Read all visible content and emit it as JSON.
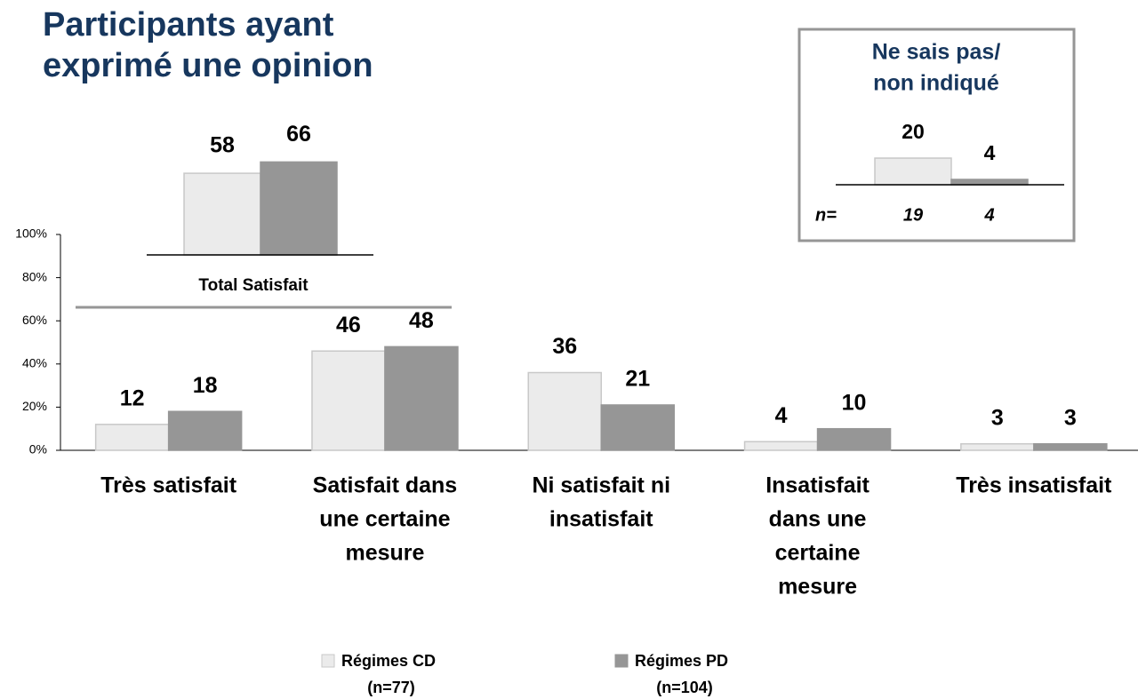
{
  "chart_data": [
    {
      "type": "bar",
      "title": [
        "Participants ayant",
        "exprimé une opinion"
      ],
      "categories": [
        [
          "Très satisfait"
        ],
        [
          "Satisfait dans",
          "une certaine",
          "mesure"
        ],
        [
          "Ni satisfait ni",
          "insatisfait"
        ],
        [
          "Insatisfait",
          "dans une",
          "certaine",
          "mesure"
        ],
        [
          "Très insatisfait"
        ]
      ],
      "series": [
        {
          "name": [
            "Régimes CD",
            "(n=77)"
          ],
          "color": "#ebebeb",
          "values": [
            12,
            46,
            36,
            4,
            3
          ]
        },
        {
          "name": [
            "Régimes PD",
            "(n=104)"
          ],
          "color": "#969696",
          "values": [
            18,
            48,
            21,
            10,
            3
          ]
        }
      ],
      "ylim": [
        0,
        100
      ],
      "yticks": [
        {
          "value": 0,
          "label": "0%"
        },
        {
          "value": 20,
          "label": "20%"
        },
        {
          "value": 40,
          "label": "40%"
        },
        {
          "value": 60,
          "label": "60%"
        },
        {
          "value": 80,
          "label": "80%"
        },
        {
          "value": 100,
          "label": "100%"
        }
      ]
    },
    {
      "type": "bar",
      "xlabel": "Total Satisfait",
      "values": [
        58,
        66
      ]
    },
    {
      "type": "bar",
      "title": [
        "Ne sais pas/",
        "non indiqué"
      ],
      "values": [
        20,
        4
      ],
      "n_label": "n=",
      "n_values": [
        19,
        4
      ]
    }
  ]
}
